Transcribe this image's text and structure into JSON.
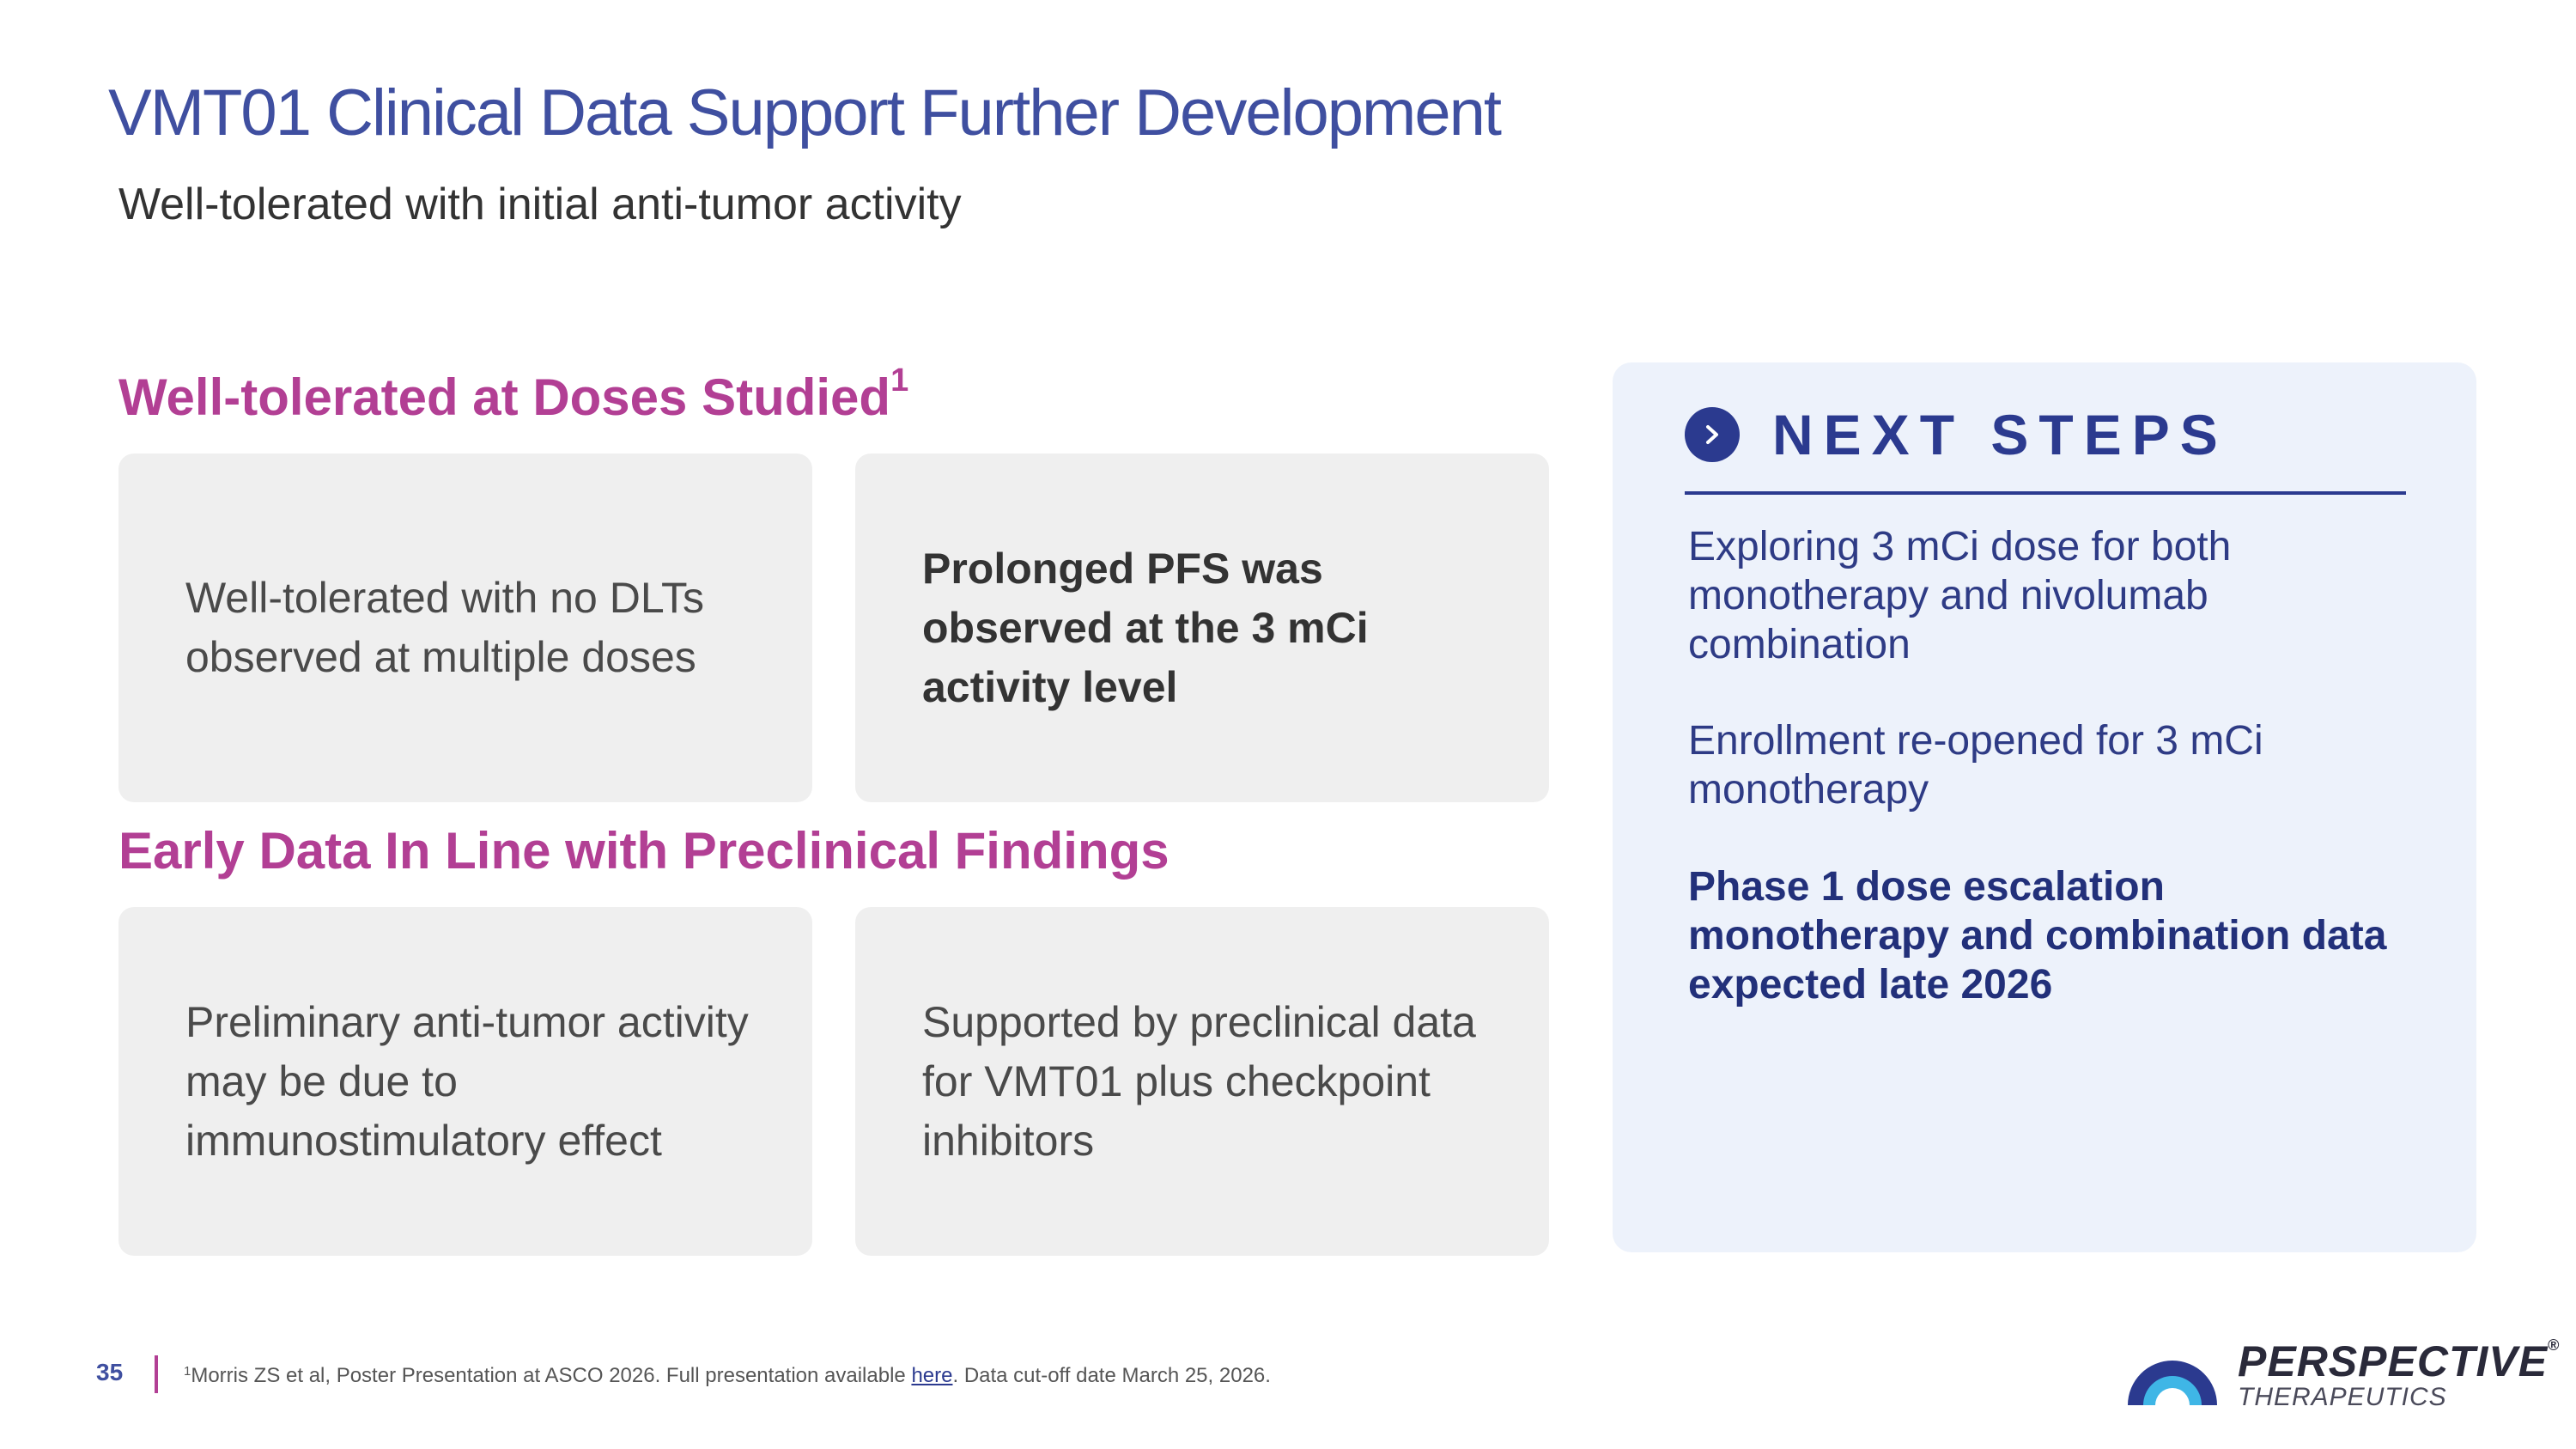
{
  "header": {
    "title": "VMT01 Clinical Data Support Further Development",
    "subtitle": "Well-tolerated with initial anti-tumor activity"
  },
  "sections": [
    {
      "heading": "Well-tolerated at Doses Studied",
      "heading_sup": "1",
      "cards": [
        {
          "text": "Well-tolerated with no DLTs observed at multiple doses"
        },
        {
          "text": "Prolonged PFS was observed at the 3 mCi activity level"
        }
      ]
    },
    {
      "heading": "Early Data In Line with Preclinical Findings",
      "cards": [
        {
          "text": "Preliminary anti-tumor activity may be due to immunostimulatory effect"
        },
        {
          "text": "Supported by preclinical data for VMT01 plus checkpoint inhibitors"
        }
      ]
    }
  ],
  "next_steps": {
    "title": "NEXT STEPS",
    "icon": "chevron-right-circle-icon",
    "items": [
      {
        "text": "Exploring 3 mCi dose for both monotherapy and nivolumab combination"
      },
      {
        "text": "Enrollment re-opened for 3 mCi monotherapy"
      },
      {
        "text": "Phase 1 dose escalation monotherapy and combination data expected late 2026"
      }
    ]
  },
  "footer": {
    "page_number": "35",
    "footnote_sup": "1",
    "footnote_before": "Morris ZS et al, Poster Presentation at ASCO 2026. Full presentation available ",
    "footnote_link": "here",
    "footnote_after": ". Data cut-off date March 25, 2026."
  },
  "logo": {
    "name": "PERSPECTIVE",
    "registered": "®",
    "sub": "THERAPEUTICS"
  },
  "colors": {
    "title": "#3f4fa0",
    "section_heading": "#b23f94",
    "card_bg": "#efefef",
    "panel_bg": "#edf2fb",
    "panel_accent": "#2b3a8f"
  }
}
